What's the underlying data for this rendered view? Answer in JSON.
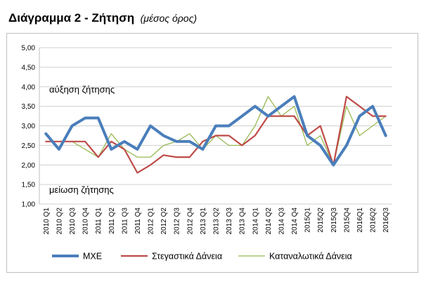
{
  "page": {
    "title": "Διάγραμμα 2 - Ζήτηση",
    "subtitle": "(μέσος όρος)"
  },
  "chart_data": {
    "type": "line",
    "title": "Διάγραμμα 2 - Ζήτηση",
    "subtitle": "(μέσος όρος)",
    "xlabel": "",
    "ylabel": "",
    "ylim": [
      1.0,
      5.0
    ],
    "ytick_labels": [
      "1,00",
      "1,50",
      "2,00",
      "2,50",
      "3,00",
      "3,50",
      "4,00",
      "4,50",
      "5,00"
    ],
    "grid": true,
    "legend_position": "bottom",
    "categories": [
      "2010 Q1",
      "2010 Q2",
      "2010 Q3",
      "2010 Q4",
      "2011 Q1",
      "2011 Q2",
      "2011 Q3",
      "2011 Q4",
      "2012 Q1",
      "2012 Q2",
      "2012 Q3",
      "2012 Q4",
      "2013 Q1",
      "2013 Q2",
      "2013 Q3",
      "2013 Q4",
      "2014 Q1",
      "2014 Q2",
      "2014 Q3",
      "2014 Q4",
      "2015Q1",
      "2015Q2",
      "2015Q3",
      "2015Q4",
      "2016Q1",
      "2016Q2",
      "2016Q3"
    ],
    "series": [
      {
        "name": "ΜΧΕ",
        "color": "#4a7ebb",
        "values": [
          2.8,
          2.4,
          3.0,
          3.2,
          3.2,
          2.4,
          2.6,
          2.4,
          3.0,
          2.75,
          2.6,
          2.6,
          2.4,
          3.0,
          3.0,
          3.25,
          3.5,
          3.25,
          3.5,
          3.75,
          2.75,
          2.5,
          2.0,
          2.5,
          3.25,
          3.5,
          2.75
        ]
      },
      {
        "name": "Στεγαστικά Δάνεια",
        "color": "#be4b48",
        "values": [
          2.6,
          2.6,
          2.6,
          2.6,
          2.2,
          2.6,
          2.4,
          1.8,
          2.0,
          2.25,
          2.2,
          2.2,
          2.6,
          2.75,
          2.75,
          2.5,
          2.75,
          3.25,
          3.25,
          3.25,
          2.75,
          3.0,
          2.0,
          3.75,
          3.5,
          3.25,
          3.25
        ]
      },
      {
        "name": "Καταναλωτικά Δάνεια",
        "color": "#98b954",
        "values": [
          2.6,
          2.6,
          2.6,
          2.4,
          2.2,
          2.8,
          2.4,
          2.2,
          2.2,
          2.5,
          2.6,
          2.8,
          2.4,
          2.75,
          2.5,
          2.5,
          3.0,
          3.75,
          3.25,
          3.5,
          2.5,
          2.75,
          2.0,
          3.5,
          2.75,
          3.0,
          3.25
        ]
      }
    ],
    "annotations": [
      "αύξηση ζήτησης",
      "μείωση ζήτησης"
    ]
  }
}
